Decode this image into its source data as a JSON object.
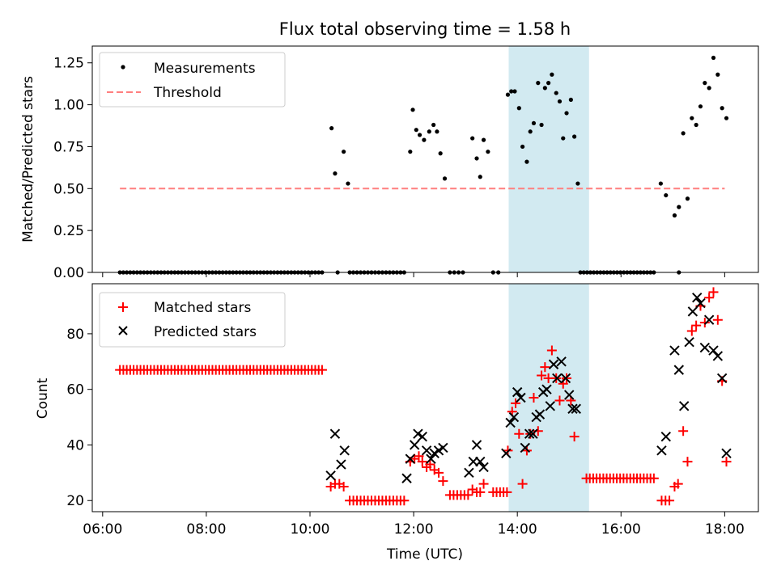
{
  "title": "Flux total observing time = 1.58 h",
  "colors": {
    "highlight": "#add8e6",
    "threshold": "#ff7f7f",
    "matched": "#ff0000",
    "predicted": "#000000",
    "measurement": "#000000"
  },
  "chart_data": [
    {
      "type": "scatter",
      "ylabel": "Matched/Predicted stars",
      "ylim": [
        0,
        1.35
      ],
      "yticks": [
        "0.00",
        "0.25",
        "0.50",
        "0.75",
        "1.00",
        "1.25"
      ],
      "ytick_values": [
        0,
        0.25,
        0.5,
        0.75,
        1.0,
        1.25
      ],
      "legend": {
        "placement": "upper-left",
        "entries": [
          "Measurements",
          "Threshold"
        ]
      },
      "highlight_span": [
        "13:50",
        "15:23"
      ],
      "threshold": {
        "value": 0.5,
        "x_range": [
          "06:20",
          "18:00"
        ]
      },
      "series": [
        {
          "name": "Measurements",
          "points": [
            [
              "10:25",
              0.86
            ],
            [
              "10:29",
              0.59
            ],
            [
              "10:39",
              0.72
            ],
            [
              "10:44",
              0.53
            ],
            [
              "11:56",
              0.72
            ],
            [
              "11:59",
              0.97
            ],
            [
              "12:03",
              0.85
            ],
            [
              "12:07",
              0.82
            ],
            [
              "12:12",
              0.79
            ],
            [
              "12:18",
              0.84
            ],
            [
              "12:23",
              0.88
            ],
            [
              "12:27",
              0.84
            ],
            [
              "12:31",
              0.71
            ],
            [
              "12:36",
              0.56
            ],
            [
              "13:08",
              0.8
            ],
            [
              "13:13",
              0.68
            ],
            [
              "13:17",
              0.57
            ],
            [
              "13:21",
              0.79
            ],
            [
              "13:26",
              0.72
            ],
            [
              "13:49",
              1.06
            ],
            [
              "13:53",
              1.08
            ],
            [
              "13:57",
              1.08
            ],
            [
              "14:02",
              0.98
            ],
            [
              "14:06",
              0.75
            ],
            [
              "14:11",
              0.66
            ],
            [
              "14:15",
              0.84
            ],
            [
              "14:19",
              0.89
            ],
            [
              "14:24",
              1.13
            ],
            [
              "14:28",
              0.88
            ],
            [
              "14:32",
              1.1
            ],
            [
              "14:36",
              1.13
            ],
            [
              "14:40",
              1.18
            ],
            [
              "14:45",
              1.07
            ],
            [
              "14:49",
              1.02
            ],
            [
              "14:53",
              0.8
            ],
            [
              "14:57",
              0.95
            ],
            [
              "15:02",
              1.03
            ],
            [
              "15:06",
              0.81
            ],
            [
              "15:10",
              0.53
            ],
            [
              "16:46",
              0.53
            ],
            [
              "16:52",
              0.46
            ],
            [
              "17:02",
              0.34
            ],
            [
              "17:07",
              0.39
            ],
            [
              "17:12",
              0.83
            ],
            [
              "17:17",
              0.44
            ],
            [
              "17:22",
              0.92
            ],
            [
              "17:27",
              0.88
            ],
            [
              "17:32",
              0.99
            ],
            [
              "17:37",
              1.13
            ],
            [
              "17:42",
              1.1
            ],
            [
              "17:47",
              1.28
            ],
            [
              "17:52",
              1.18
            ],
            [
              "17:57",
              0.98
            ],
            [
              "18:02",
              0.92
            ]
          ],
          "zero_runs": [
            [
              "06:20",
              "10:14",
              60
            ],
            [
              "10:32",
              "10:32",
              1
            ],
            [
              "10:46",
              "11:49",
              16
            ],
            [
              "12:42",
              "12:57",
              4
            ],
            [
              "13:32",
              "13:38",
              2
            ],
            [
              "15:13",
              "16:38",
              23
            ],
            [
              "17:07",
              "17:07",
              1
            ]
          ]
        }
      ]
    },
    {
      "type": "scatter",
      "xlabel": "Time (UTC)",
      "ylabel": "Count",
      "ylim": [
        16,
        98
      ],
      "yticks": [
        "20",
        "40",
        "60",
        "80"
      ],
      "ytick_values": [
        20,
        40,
        60,
        80
      ],
      "xticks": [
        "06:00",
        "08:00",
        "10:00",
        "12:00",
        "14:00",
        "16:00",
        "18:00"
      ],
      "xlim": [
        "05:48",
        "18:39"
      ],
      "legend": {
        "placement": "upper-left",
        "entries": [
          "Matched stars",
          "Predicted stars"
        ]
      },
      "highlight_span": [
        "13:50",
        "15:23"
      ],
      "series": [
        {
          "name": "Matched stars",
          "runs": [
            [
              "06:20",
              "10:14",
              67,
              60
            ],
            [
              "10:46",
              "11:49",
              20,
              16
            ],
            [
              "12:42",
              "13:03",
              22,
              6
            ],
            [
              "13:32",
              "13:48",
              23,
              5
            ],
            [
              "15:20",
              "16:38",
              28,
              21
            ],
            [
              "16:47",
              "16:56",
              20,
              3
            ]
          ],
          "points": [
            [
              "10:24",
              25
            ],
            [
              "10:29",
              26
            ],
            [
              "10:34",
              26
            ],
            [
              "10:39",
              25
            ],
            [
              "11:56",
              34
            ],
            [
              "12:01",
              35
            ],
            [
              "12:06",
              36
            ],
            [
              "12:10",
              34
            ],
            [
              "12:15",
              32
            ],
            [
              "12:19",
              33
            ],
            [
              "12:24",
              31
            ],
            [
              "12:29",
              30
            ],
            [
              "12:34",
              27
            ],
            [
              "13:08",
              24
            ],
            [
              "13:13",
              23
            ],
            [
              "13:17",
              23
            ],
            [
              "13:21",
              26
            ],
            [
              "13:49",
              38
            ],
            [
              "13:54",
              52
            ],
            [
              "13:58",
              55
            ],
            [
              "14:02",
              44
            ],
            [
              "14:06",
              26
            ],
            [
              "14:11",
              38
            ],
            [
              "14:15",
              44
            ],
            [
              "14:19",
              57
            ],
            [
              "14:24",
              45
            ],
            [
              "14:28",
              65
            ],
            [
              "14:32",
              68
            ],
            [
              "14:36",
              64
            ],
            [
              "14:40",
              74
            ],
            [
              "14:45",
              64
            ],
            [
              "14:49",
              56
            ],
            [
              "14:53",
              62
            ],
            [
              "14:57",
              64
            ],
            [
              "15:02",
              56
            ],
            [
              "15:06",
              43
            ],
            [
              "17:02",
              25
            ],
            [
              "17:06",
              26
            ],
            [
              "17:12",
              45
            ],
            [
              "17:17",
              34
            ],
            [
              "17:22",
              81
            ],
            [
              "17:27",
              83
            ],
            [
              "17:32",
              90
            ],
            [
              "17:37",
              84
            ],
            [
              "17:42",
              93
            ],
            [
              "17:47",
              95
            ],
            [
              "17:52",
              85
            ],
            [
              "17:57",
              63
            ],
            [
              "18:02",
              34
            ]
          ]
        },
        {
          "name": "Predicted stars",
          "points": [
            [
              "10:24",
              29
            ],
            [
              "10:29",
              44
            ],
            [
              "10:36",
              33
            ],
            [
              "10:40",
              38
            ],
            [
              "11:52",
              28
            ],
            [
              "11:56",
              35
            ],
            [
              "12:01",
              40
            ],
            [
              "12:05",
              44
            ],
            [
              "12:10",
              43
            ],
            [
              "12:15",
              38
            ],
            [
              "12:20",
              35
            ],
            [
              "12:24",
              37
            ],
            [
              "12:29",
              38
            ],
            [
              "12:34",
              39
            ],
            [
              "13:04",
              30
            ],
            [
              "13:09",
              34
            ],
            [
              "13:13",
              40
            ],
            [
              "13:17",
              34
            ],
            [
              "13:21",
              32
            ],
            [
              "13:47",
              37
            ],
            [
              "13:52",
              48
            ],
            [
              "13:56",
              50
            ],
            [
              "14:00",
              59
            ],
            [
              "14:04",
              57
            ],
            [
              "14:09",
              39
            ],
            [
              "14:14",
              44
            ],
            [
              "14:18",
              44
            ],
            [
              "14:22",
              50
            ],
            [
              "14:26",
              51
            ],
            [
              "14:30",
              59
            ],
            [
              "14:34",
              60
            ],
            [
              "14:38",
              54
            ],
            [
              "14:42",
              69
            ],
            [
              "14:46",
              64
            ],
            [
              "14:51",
              70
            ],
            [
              "14:56",
              64
            ],
            [
              "15:00",
              58
            ],
            [
              "15:04",
              53
            ],
            [
              "15:08",
              53
            ],
            [
              "16:47",
              38
            ],
            [
              "16:52",
              43
            ],
            [
              "17:02",
              74
            ],
            [
              "17:07",
              67
            ],
            [
              "17:13",
              54
            ],
            [
              "17:19",
              77
            ],
            [
              "17:23",
              88
            ],
            [
              "17:28",
              93
            ],
            [
              "17:32",
              91
            ],
            [
              "17:37",
              75
            ],
            [
              "17:42",
              85
            ],
            [
              "17:47",
              74
            ],
            [
              "17:52",
              72
            ],
            [
              "17:57",
              64
            ],
            [
              "18:02",
              37
            ]
          ]
        }
      ]
    }
  ]
}
